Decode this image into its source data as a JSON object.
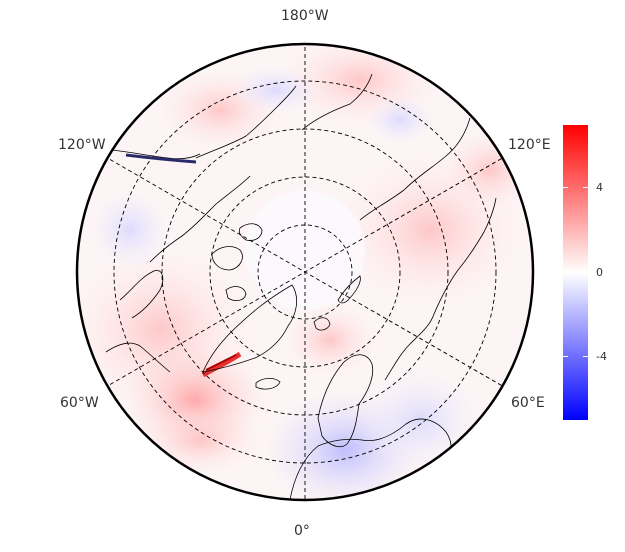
{
  "map": {
    "projection": "north-polar-stereographic",
    "longitude_labels": {
      "top": "180°W",
      "bottom": "0°",
      "upper_left": "120°W",
      "upper_right": "120°E",
      "lower_left": "60°W",
      "lower_right": "60°E"
    },
    "graticule_style": "dashed",
    "fill_colormap": "blue-white-red"
  },
  "colorbar": {
    "tick_labels": [
      "4",
      "0",
      "-4"
    ],
    "min_color": "#0000ff",
    "mid_color": "#ffffff",
    "max_color": "#ff0000"
  }
}
